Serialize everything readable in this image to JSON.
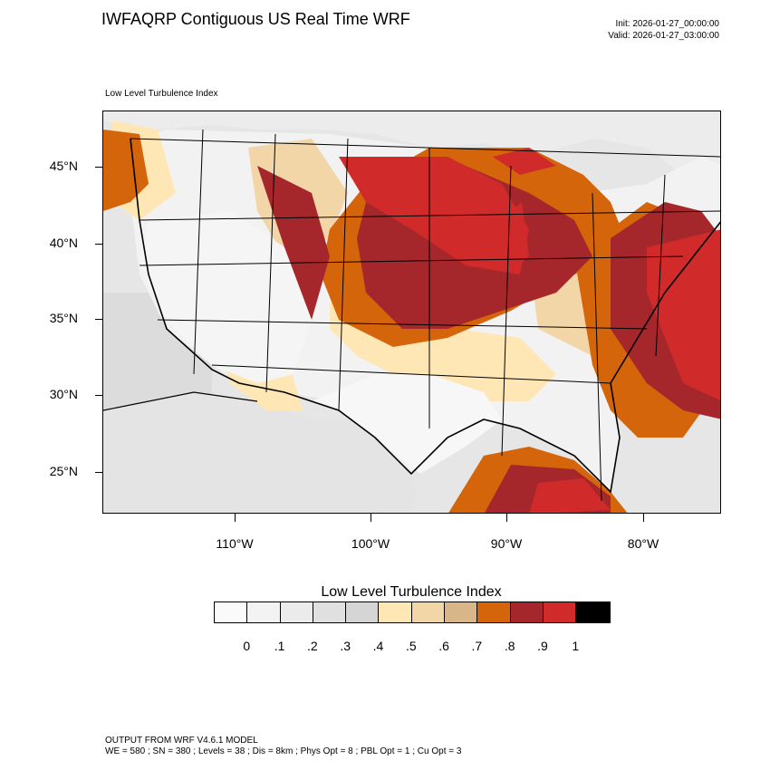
{
  "header": {
    "title": "IWFAQRP Contiguous US Real Time WRF",
    "init": "Init: 2026-01-27_00:00:00",
    "valid": "Valid: 2026-01-27_03:00:00",
    "subtitle": "Low Level Turbulence Index"
  },
  "map": {
    "lat_labels": [
      "45°N",
      "40°N",
      "35°N",
      "30°N",
      "25°N"
    ],
    "lon_labels": [
      "110°W",
      "100°W",
      "90°W",
      "80°W"
    ],
    "field": "turbulence-index",
    "high_regions": [
      "northern-plains",
      "upper-midwest",
      "mid-atlantic",
      "southeast",
      "gulf-of-mexico",
      "atlantic-coast",
      "rocky-mountains"
    ],
    "low_regions": [
      "great-basin",
      "southwest",
      "texas",
      "lower-mississippi"
    ]
  },
  "legend": {
    "title": "Low Level Turbulence Index",
    "colors": [
      "#fafafa",
      "#f3f3f3",
      "#ebebeb",
      "#e0e0e0",
      "#d5d5d5",
      "#ffe6b5",
      "#f3d6a8",
      "#d9b58a",
      "#d4650b",
      "#a5272b",
      "#d02a2a",
      "#000000"
    ],
    "labels": [
      "0",
      ".1",
      ".2",
      ".3",
      ".4",
      ".5",
      ".6",
      ".7",
      ".8",
      ".9",
      "1"
    ]
  },
  "footer": {
    "line1": "OUTPUT FROM WRF V4.6.1 MODEL",
    "line2": "WE = 580 ; SN = 380 ; Levels = 38 ; Dis = 8km ; Phys Opt = 8 ; PBL Opt = 1 ; Cu Opt = 3"
  }
}
